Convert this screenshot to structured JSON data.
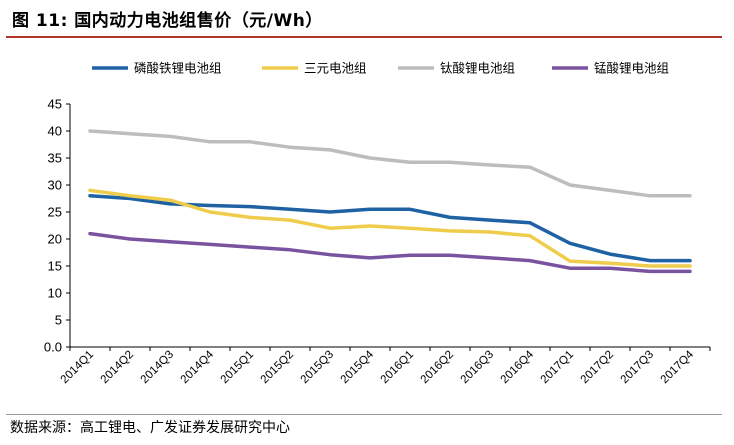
{
  "header": {
    "title": "图 11:  国内动力电池组售价（元/Wh）"
  },
  "footer": {
    "source": "数据来源：高工锂电、广发证券发展研究中心"
  },
  "colors": {
    "title_rule": "#b0342c",
    "series": [
      "#1f62a4",
      "#f0cc4c",
      "#bdbdbd",
      "#7a53a0"
    ]
  },
  "chart_data": {
    "type": "line",
    "title": "",
    "xlabel": "",
    "ylabel": "",
    "ylim": [
      0,
      45
    ],
    "yticks": [
      "0.0",
      "5",
      "10",
      "15",
      "20",
      "25",
      "30",
      "35",
      "40",
      "45"
    ],
    "grid": false,
    "legend_position": "top",
    "categories": [
      "2014Q1",
      "2014Q2",
      "2014Q3",
      "2014Q4",
      "2015Q1",
      "2015Q2",
      "2015Q3",
      "2015Q4",
      "2016Q1",
      "2016Q2",
      "2016Q3",
      "2016Q4",
      "2017Q1",
      "2017Q2",
      "2017Q3",
      "2017Q4"
    ],
    "series": [
      {
        "name": "磷酸铁锂电池组",
        "values": [
          28,
          27.5,
          26.5,
          26.2,
          26,
          25.5,
          25,
          25.5,
          25.5,
          24,
          23.5,
          23,
          19.2,
          17.2,
          16,
          16
        ]
      },
      {
        "name": "三元电池组",
        "values": [
          29,
          28,
          27.2,
          25,
          24,
          23.5,
          22,
          22.4,
          22,
          21.5,
          21.3,
          20.6,
          15.9,
          15.5,
          15,
          15
        ]
      },
      {
        "name": "钛酸锂电池组",
        "values": [
          40,
          39.5,
          39,
          38,
          38,
          37,
          36.5,
          35,
          34.2,
          34.2,
          33.7,
          33.3,
          30,
          29,
          28,
          28
        ]
      },
      {
        "name": "锰酸锂电池组",
        "values": [
          21,
          20,
          19.5,
          19,
          18.5,
          18,
          17.1,
          16.5,
          17,
          17,
          16.5,
          16,
          14.6,
          14.6,
          14,
          14
        ]
      }
    ]
  }
}
